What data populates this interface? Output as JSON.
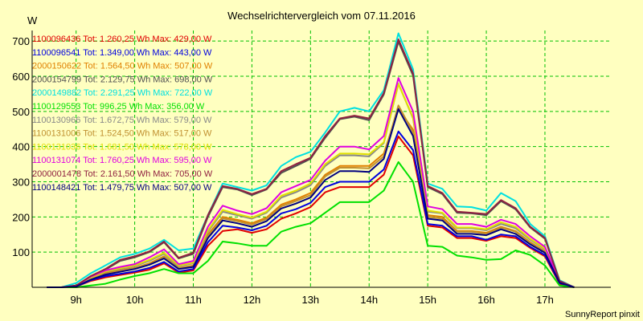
{
  "chart_data": {
    "type": "line",
    "title": "Wechselrichtervergleich vom 07.11.2016",
    "ylabel": "W",
    "xlabel": "",
    "footer": "SunnyReport pinxit",
    "x_ticks": [
      {
        "value": 9,
        "label": "9h"
      },
      {
        "value": 10,
        "label": "10h"
      },
      {
        "value": 11,
        "label": "11h"
      },
      {
        "value": 12,
        "label": "12h"
      },
      {
        "value": 13,
        "label": "13h"
      },
      {
        "value": 14,
        "label": "14h"
      },
      {
        "value": 15,
        "label": "15h"
      },
      {
        "value": 16,
        "label": "16h"
      },
      {
        "value": 17,
        "label": "17h"
      }
    ],
    "y_ticks": [
      100,
      200,
      300,
      400,
      500,
      600,
      700
    ],
    "xlim": [
      8.25,
      18.125
    ],
    "ylim": [
      0,
      730
    ],
    "grid": true,
    "legend_position": "top-left",
    "x": [
      8.5,
      8.75,
      9.0,
      9.25,
      9.5,
      9.75,
      10.0,
      10.25,
      10.5,
      10.75,
      11.0,
      11.25,
      11.5,
      11.75,
      12.0,
      12.25,
      12.5,
      12.75,
      13.0,
      13.25,
      13.5,
      13.75,
      14.0,
      14.25,
      14.5,
      14.75,
      15.0,
      15.25,
      15.5,
      15.75,
      16.0,
      16.25,
      16.5,
      16.75,
      17.0,
      17.25,
      17.5
    ],
    "series": [
      {
        "name": "1100096436",
        "legend": "1100096436 Tot: 1.260,25 Wh Max: 429,00 W",
        "color": "#e00000",
        "values": [
          0,
          0,
          2,
          18,
          28,
          35,
          42,
          50,
          68,
          42,
          48,
          118,
          160,
          165,
          155,
          165,
          195,
          210,
          228,
          270,
          285,
          285,
          285,
          320,
          429,
          375,
          175,
          170,
          140,
          140,
          132,
          145,
          140,
          112,
          88,
          10,
          0
        ]
      },
      {
        "name": "1100096541",
        "legend": "1100096541 Tot: 1.349,00 Wh Max: 443,00 W",
        "color": "#0000e0",
        "values": [
          0,
          0,
          2,
          20,
          32,
          38,
          45,
          55,
          72,
          45,
          52,
          128,
          175,
          170,
          162,
          175,
          210,
          222,
          240,
          285,
          300,
          300,
          300,
          335,
          443,
          390,
          180,
          175,
          145,
          145,
          135,
          150,
          145,
          115,
          92,
          12,
          0
        ]
      },
      {
        "name": "2000150622",
        "legend": "2000150622 Tot: 1.564,50 Wh Max: 507,00 W",
        "color": "#e08000",
        "values": [
          0,
          0,
          2,
          25,
          40,
          48,
          55,
          68,
          88,
          55,
          62,
          150,
          200,
          192,
          182,
          198,
          235,
          250,
          268,
          320,
          345,
          345,
          345,
          380,
          507,
          448,
          205,
          200,
          160,
          160,
          155,
          172,
          160,
          128,
          102,
          14,
          0
        ]
      },
      {
        "name": "2000154799",
        "legend": "2000154799 Tot: 2.129,75 Wh Max: 698,00 W",
        "color": "#505050",
        "values": [
          0,
          0,
          5,
          30,
          50,
          75,
          85,
          100,
          128,
          82,
          95,
          200,
          285,
          278,
          262,
          278,
          325,
          345,
          365,
          425,
          478,
          485,
          475,
          548,
          698,
          602,
          285,
          265,
          212,
          210,
          205,
          245,
          222,
          170,
          138,
          18,
          0
        ]
      },
      {
        "name": "2000149882",
        "legend": "2000149882 Tot: 2.291,25 Wh Max: 722,00 W",
        "color": "#00e0e0",
        "values": [
          0,
          0,
          12,
          40,
          62,
          85,
          95,
          110,
          135,
          105,
          110,
          205,
          295,
          285,
          275,
          290,
          345,
          370,
          385,
          440,
          500,
          510,
          500,
          560,
          722,
          620,
          295,
          280,
          230,
          228,
          218,
          268,
          245,
          180,
          145,
          20,
          0
        ]
      },
      {
        "name": "1100129553",
        "legend": "1100129553 Tot: 996,25 Wh Max: 356,00 W",
        "color": "#00e000",
        "values": [
          0,
          0,
          0,
          5,
          10,
          22,
          32,
          40,
          52,
          40,
          40,
          75,
          130,
          125,
          118,
          118,
          158,
          172,
          182,
          212,
          242,
          242,
          242,
          275,
          356,
          300,
          118,
          115,
          90,
          85,
          78,
          80,
          105,
          92,
          62,
          5,
          0
        ]
      },
      {
        "name": "1100130966",
        "legend": "1100130966 Tot: 1.672,75 Wh Max: 579,00 W",
        "color": "#888888",
        "values": [
          0,
          0,
          3,
          26,
          44,
          52,
          60,
          75,
          95,
          60,
          68,
          158,
          215,
          205,
          195,
          212,
          255,
          270,
          290,
          345,
          375,
          375,
          372,
          410,
          579,
          480,
          215,
          210,
          168,
          168,
          162,
          180,
          168,
          135,
          108,
          15,
          0
        ]
      },
      {
        "name": "1100131006",
        "legend": "1100131006 Tot: 1.524,50 Wh Max: 517,00 W",
        "color": "#c09030",
        "values": [
          0,
          0,
          2,
          24,
          38,
          46,
          54,
          66,
          86,
          54,
          60,
          145,
          196,
          188,
          178,
          194,
          230,
          245,
          262,
          315,
          340,
          340,
          338,
          372,
          517,
          440,
          200,
          195,
          158,
          158,
          152,
          170,
          158,
          126,
          100,
          14,
          0
        ]
      },
      {
        "name": "1100131036",
        "legend": "1100131036 Tot: 1.681,50 Wh Max: 578,00 W",
        "color": "#e0e000",
        "values": [
          0,
          0,
          3,
          27,
          45,
          54,
          62,
          78,
          98,
          62,
          70,
          162,
          220,
          208,
          198,
          215,
          260,
          275,
          295,
          350,
          380,
          380,
          378,
          412,
          578,
          482,
          218,
          212,
          170,
          170,
          165,
          185,
          172,
          138,
          110,
          15,
          0
        ]
      },
      {
        "name": "1100131074",
        "legend": "1100131074 Tot: 1.760,25 Wh Max: 595,00 W",
        "color": "#e000e0",
        "values": [
          0,
          0,
          4,
          30,
          48,
          58,
          66,
          85,
          108,
          66,
          75,
          172,
          232,
          218,
          208,
          225,
          270,
          288,
          305,
          360,
          400,
          400,
          392,
          430,
          595,
          500,
          230,
          222,
          180,
          180,
          172,
          192,
          180,
          145,
          115,
          16,
          0
        ]
      },
      {
        "name": "2000001478",
        "legend": "2000001478 Tot: 2.161,50 Wh Max: 705,00 W",
        "color": "#902040",
        "values": [
          0,
          0,
          5,
          32,
          52,
          78,
          88,
          102,
          130,
          84,
          98,
          205,
          288,
          280,
          265,
          280,
          330,
          350,
          368,
          430,
          480,
          488,
          480,
          552,
          705,
          608,
          288,
          268,
          215,
          212,
          208,
          248,
          225,
          172,
          140,
          18,
          0
        ]
      },
      {
        "name": "1100148421",
        "legend": "1100148421 Tot: 1.479,75 Wh Max: 507,00 W",
        "color": "#000080",
        "values": [
          0,
          0,
          2,
          22,
          36,
          44,
          52,
          64,
          82,
          52,
          58,
          140,
          190,
          182,
          172,
          188,
          224,
          238,
          255,
          305,
          330,
          330,
          328,
          365,
          507,
          430,
          195,
          190,
          152,
          152,
          148,
          165,
          152,
          122,
          98,
          13,
          0
        ]
      }
    ]
  }
}
